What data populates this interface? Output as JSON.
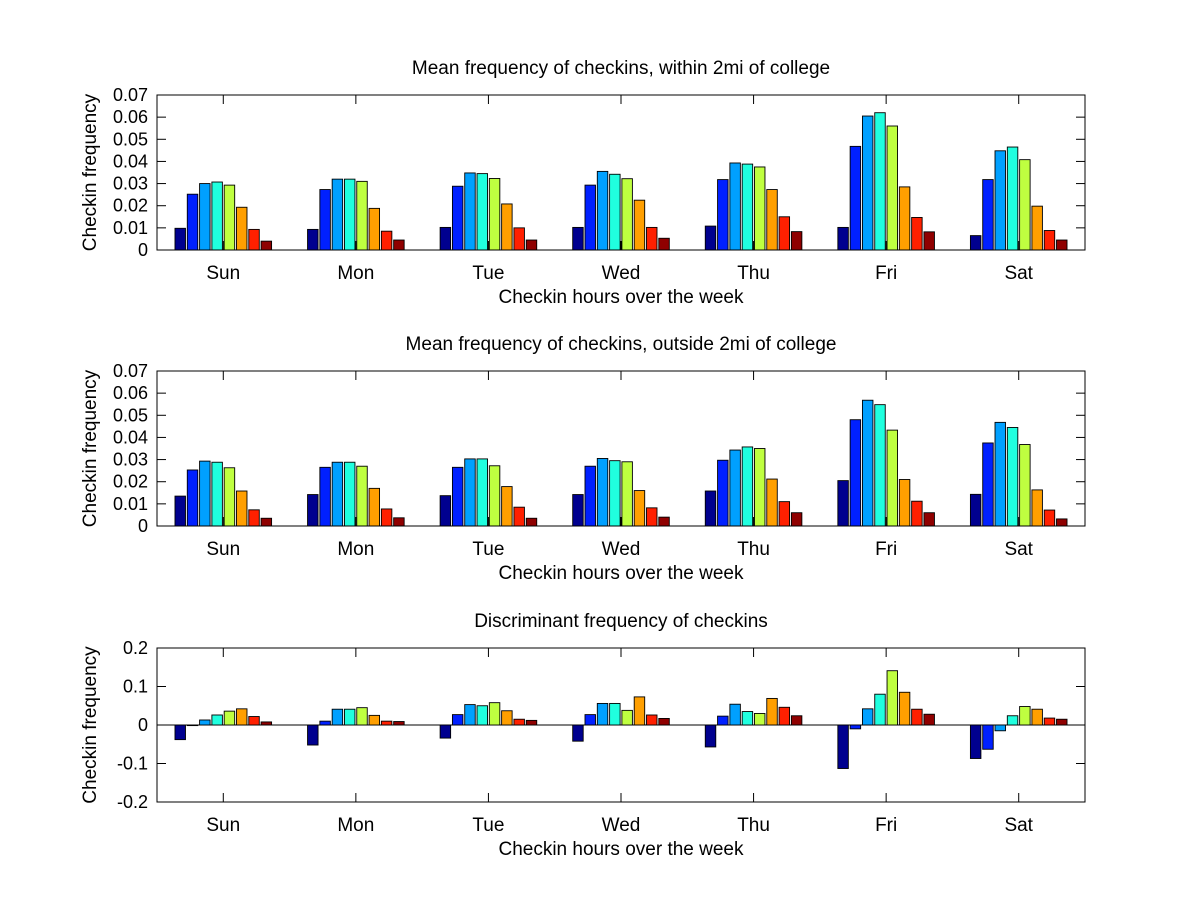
{
  "palette": [
    "#00008f",
    "#0020ff",
    "#00a0ff",
    "#20ffdf",
    "#bfff40",
    "#ff9f00",
    "#ff2000",
    "#8f0000"
  ],
  "chart_data": [
    {
      "type": "bar",
      "title": "Mean frequency of checkins, within 2mi of college",
      "xlabel": "Checkin hours over the week",
      "ylabel": "Checkin frequency",
      "ylim": [
        0,
        0.07
      ],
      "yticks": [
        "0",
        "0.01",
        "0.02",
        "0.03",
        "0.04",
        "0.05",
        "0.06",
        "0.07"
      ],
      "grid": false,
      "categories": [
        "Sun",
        "Mon",
        "Tue",
        "Wed",
        "Thu",
        "Fri",
        "Sat"
      ],
      "values": [
        [
          0.0098,
          0.0252,
          0.03,
          0.0307,
          0.0293,
          0.0193,
          0.0093,
          0.004
        ],
        [
          0.0093,
          0.0273,
          0.032,
          0.032,
          0.031,
          0.0188,
          0.0085,
          0.0045
        ],
        [
          0.0102,
          0.0288,
          0.0348,
          0.0345,
          0.0323,
          0.0208,
          0.01,
          0.0045
        ],
        [
          0.0102,
          0.0293,
          0.0355,
          0.0342,
          0.0322,
          0.0225,
          0.0102,
          0.0053
        ],
        [
          0.0108,
          0.0318,
          0.0393,
          0.0388,
          0.0375,
          0.0273,
          0.015,
          0.0083
        ],
        [
          0.0102,
          0.0468,
          0.0605,
          0.062,
          0.056,
          0.0285,
          0.0147,
          0.0082
        ],
        [
          0.0065,
          0.0318,
          0.0448,
          0.0465,
          0.0408,
          0.0198,
          0.0088,
          0.0045
        ]
      ]
    },
    {
      "type": "bar",
      "title": "Mean frequency of checkins, outside 2mi of college",
      "xlabel": "Checkin hours over the week",
      "ylabel": "Checkin frequency",
      "ylim": [
        0,
        0.07
      ],
      "yticks": [
        "0",
        "0.01",
        "0.02",
        "0.03",
        "0.04",
        "0.05",
        "0.06",
        "0.07"
      ],
      "grid": false,
      "categories": [
        "Sun",
        "Mon",
        "Tue",
        "Wed",
        "Thu",
        "Fri",
        "Sat"
      ],
      "values": [
        [
          0.0135,
          0.0253,
          0.0293,
          0.0288,
          0.0263,
          0.0158,
          0.0073,
          0.0035
        ],
        [
          0.0142,
          0.0265,
          0.0288,
          0.0288,
          0.027,
          0.017,
          0.0077,
          0.0037
        ],
        [
          0.0137,
          0.0265,
          0.0303,
          0.0303,
          0.0272,
          0.0178,
          0.0085,
          0.0035
        ],
        [
          0.0142,
          0.027,
          0.0305,
          0.0295,
          0.029,
          0.016,
          0.0082,
          0.004
        ],
        [
          0.0158,
          0.0297,
          0.0343,
          0.0357,
          0.035,
          0.0212,
          0.011,
          0.006
        ],
        [
          0.0205,
          0.048,
          0.0568,
          0.0548,
          0.0433,
          0.021,
          0.0112,
          0.006
        ],
        [
          0.0143,
          0.0375,
          0.0468,
          0.0445,
          0.0368,
          0.0163,
          0.0072,
          0.0032
        ]
      ]
    },
    {
      "type": "bar",
      "title": "Discriminant frequency of checkins",
      "xlabel": "Checkin hours over the week",
      "ylabel": "Checkin frequency",
      "ylim": [
        -0.2,
        0.2
      ],
      "yticks": [
        "-0.2",
        "-0.1",
        "0",
        "0.1",
        "0.2"
      ],
      "grid": false,
      "categories": [
        "Sun",
        "Mon",
        "Tue",
        "Wed",
        "Thu",
        "Fri",
        "Sat"
      ],
      "values": [
        [
          -0.038,
          0.0,
          0.013,
          0.026,
          0.036,
          0.042,
          0.022,
          0.008
        ],
        [
          -0.052,
          0.01,
          0.041,
          0.041,
          0.045,
          0.025,
          0.01,
          0.009
        ],
        [
          -0.034,
          0.027,
          0.053,
          0.05,
          0.058,
          0.037,
          0.015,
          0.012
        ],
        [
          -0.042,
          0.027,
          0.056,
          0.056,
          0.038,
          0.073,
          0.026,
          0.017
        ],
        [
          -0.057,
          0.023,
          0.054,
          0.035,
          0.03,
          0.069,
          0.046,
          0.024
        ],
        [
          -0.113,
          -0.01,
          0.042,
          0.08,
          0.141,
          0.085,
          0.041,
          0.028
        ],
        [
          -0.087,
          -0.063,
          -0.015,
          0.024,
          0.048,
          0.041,
          0.018,
          0.015
        ]
      ]
    }
  ]
}
